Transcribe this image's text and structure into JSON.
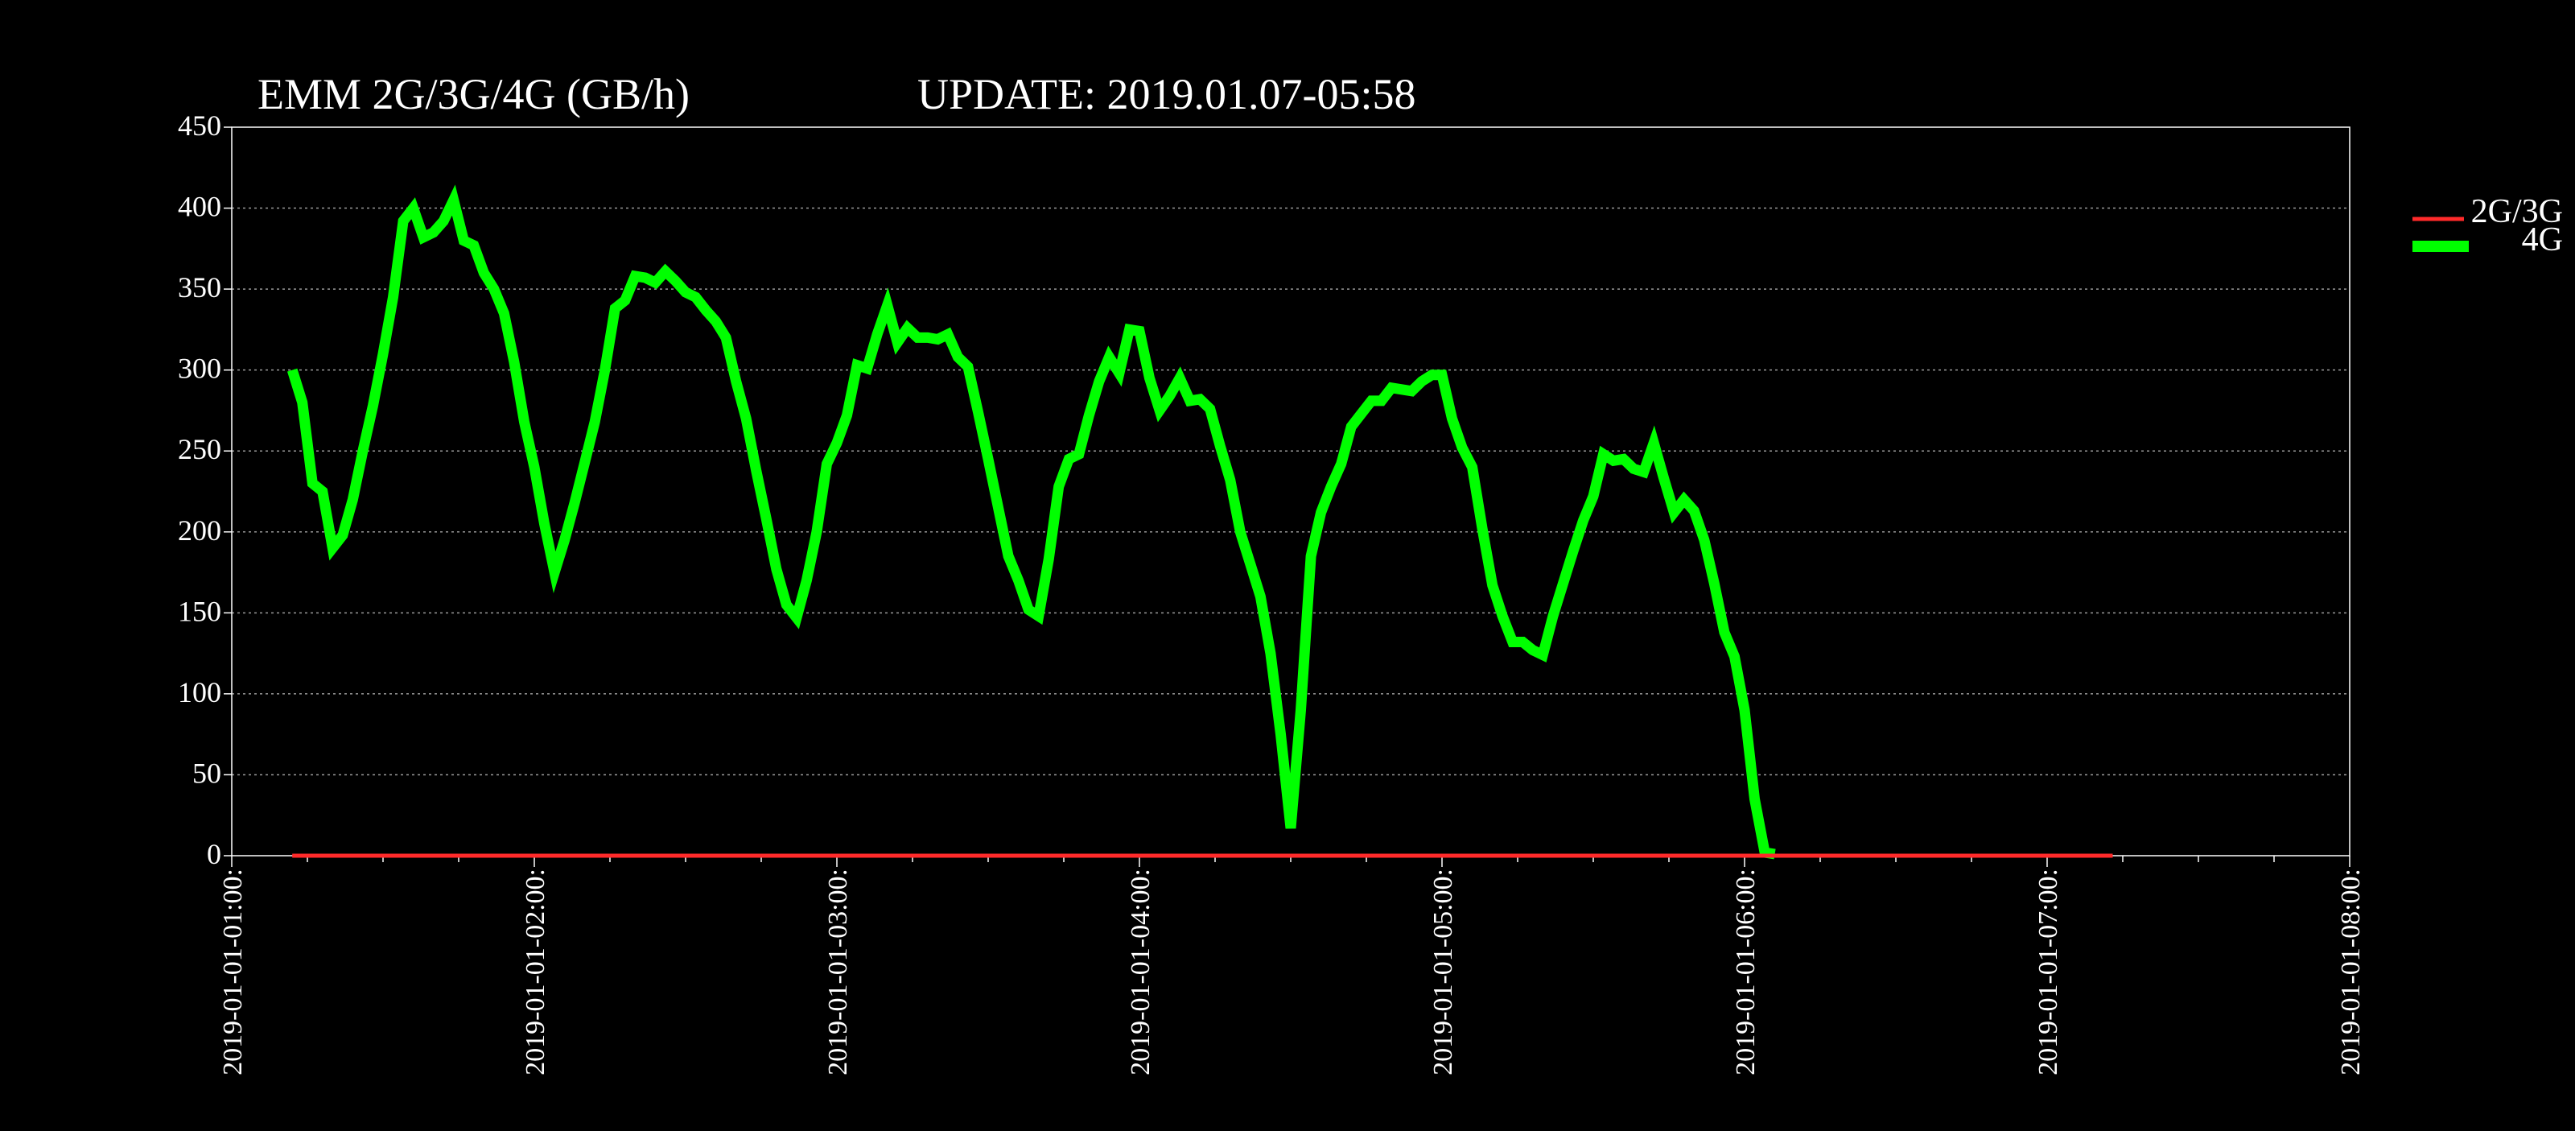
{
  "header": {
    "title": "EMM  2G/3G/4G (GB/h)",
    "update": "UPDATE: 2019.01.07-05:58"
  },
  "colors": {
    "background": "#000000",
    "axis": "#ffffff",
    "grid": "#9a9a9a",
    "series_2g3g": "#ff2a2a",
    "series_4g": "#00ff00"
  },
  "chart_data": {
    "type": "line",
    "title": "EMM  2G/3G/4G (GB/h)",
    "xlabel": "",
    "ylabel": "",
    "x_range": [
      "2019-01-01 01:00",
      "2019-01-01 08:00"
    ],
    "ylim": [
      0,
      450
    ],
    "yticks": [
      "0",
      "50",
      "100",
      "150",
      "200",
      "250",
      "300",
      "350",
      "400",
      "450"
    ],
    "xticks": [
      "2019-01-01-01:00:",
      "2019-01-01-02:00:",
      "2019-01-01-03:00:",
      "2019-01-01-04:00:",
      "2019-01-01-05:00:",
      "2019-01-01-06:00:",
      "2019-01-01-07:00:",
      "2019-01-01-08:00:"
    ],
    "grid": "horizontal dotted",
    "legend_position": "right",
    "series": [
      {
        "name": "2G/3G",
        "color": "#ff2a2a",
        "points": [
          [
            "01:12",
            0
          ],
          [
            "07:13",
            0
          ]
        ]
      },
      {
        "name": "4G",
        "color": "#00ff00",
        "points": [
          [
            "01:12",
            300
          ],
          [
            "01:14",
            280
          ],
          [
            "01:16",
            230
          ],
          [
            "01:18",
            225
          ],
          [
            "01:20",
            190
          ],
          [
            "01:22",
            198
          ],
          [
            "01:24",
            220
          ],
          [
            "01:26",
            250
          ],
          [
            "01:28",
            278
          ],
          [
            "01:30",
            310
          ],
          [
            "01:32",
            345
          ],
          [
            "01:34",
            392
          ],
          [
            "01:36",
            400
          ],
          [
            "01:38",
            382
          ],
          [
            "01:40",
            385
          ],
          [
            "01:42",
            392
          ],
          [
            "01:44",
            405
          ],
          [
            "01:46",
            380
          ],
          [
            "01:48",
            377
          ],
          [
            "01:50",
            360
          ],
          [
            "01:52",
            350
          ],
          [
            "01:54",
            335
          ],
          [
            "01:56",
            305
          ],
          [
            "01:58",
            268
          ],
          [
            "02:00",
            240
          ],
          [
            "02:02",
            205
          ],
          [
            "02:04",
            175
          ],
          [
            "02:06",
            195
          ],
          [
            "02:08",
            218
          ],
          [
            "02:10",
            243
          ],
          [
            "02:12",
            268
          ],
          [
            "02:14",
            300
          ],
          [
            "02:16",
            338
          ],
          [
            "02:18",
            343
          ],
          [
            "02:20",
            358
          ],
          [
            "02:22",
            357
          ],
          [
            "02:24",
            354
          ],
          [
            "02:26",
            361
          ],
          [
            "02:28",
            355
          ],
          [
            "02:30",
            348
          ],
          [
            "02:32",
            345
          ],
          [
            "02:34",
            337
          ],
          [
            "02:36",
            330
          ],
          [
            "02:38",
            320
          ],
          [
            "02:40",
            293
          ],
          [
            "02:42",
            270
          ],
          [
            "02:44",
            238
          ],
          [
            "02:46",
            208
          ],
          [
            "02:48",
            177
          ],
          [
            "02:50",
            155
          ],
          [
            "02:52",
            147
          ],
          [
            "02:54",
            170
          ],
          [
            "02:56",
            200
          ],
          [
            "02:58",
            242
          ],
          [
            "03:00",
            255
          ],
          [
            "03:02",
            272
          ],
          [
            "03:04",
            303
          ],
          [
            "03:06",
            301
          ],
          [
            "03:08",
            322
          ],
          [
            "03:10",
            340
          ],
          [
            "03:12",
            317
          ],
          [
            "03:14",
            326
          ],
          [
            "03:16",
            320
          ],
          [
            "03:18",
            320
          ],
          [
            "03:20",
            319
          ],
          [
            "03:22",
            322
          ],
          [
            "03:24",
            308
          ],
          [
            "03:26",
            302
          ],
          [
            "03:28",
            274
          ],
          [
            "03:30",
            245
          ],
          [
            "03:32",
            215
          ],
          [
            "03:34",
            185
          ],
          [
            "03:36",
            170
          ],
          [
            "03:38",
            152
          ],
          [
            "03:40",
            148
          ],
          [
            "03:42",
            183
          ],
          [
            "03:44",
            228
          ],
          [
            "03:46",
            245
          ],
          [
            "03:48",
            248
          ],
          [
            "03:50",
            272
          ],
          [
            "03:52",
            293
          ],
          [
            "03:54",
            308
          ],
          [
            "03:56",
            298
          ],
          [
            "03:58",
            325
          ],
          [
            "04:00",
            324
          ],
          [
            "04:02",
            295
          ],
          [
            "04:04",
            275
          ],
          [
            "04:06",
            284
          ],
          [
            "04:08",
            295
          ],
          [
            "04:10",
            281
          ],
          [
            "04:12",
            282
          ],
          [
            "04:14",
            276
          ],
          [
            "04:16",
            253
          ],
          [
            "04:18",
            232
          ],
          [
            "04:20",
            200
          ],
          [
            "04:22",
            180
          ],
          [
            "04:24",
            160
          ],
          [
            "04:26",
            125
          ],
          [
            "04:28",
            75
          ],
          [
            "04:30",
            17
          ],
          [
            "04:32",
            90
          ],
          [
            "04:34",
            185
          ],
          [
            "04:36",
            212
          ],
          [
            "04:38",
            228
          ],
          [
            "04:40",
            242
          ],
          [
            "04:42",
            265
          ],
          [
            "04:44",
            273
          ],
          [
            "04:46",
            281
          ],
          [
            "04:48",
            281
          ],
          [
            "04:50",
            289
          ],
          [
            "04:52",
            288
          ],
          [
            "04:54",
            287
          ],
          [
            "04:56",
            293
          ],
          [
            "04:58",
            297
          ],
          [
            "05:00",
            297
          ],
          [
            "05:02",
            270
          ],
          [
            "05:04",
            252
          ],
          [
            "05:06",
            240
          ],
          [
            "05:08",
            202
          ],
          [
            "05:10",
            167
          ],
          [
            "05:12",
            148
          ],
          [
            "05:14",
            132
          ],
          [
            "05:16",
            132
          ],
          [
            "05:18",
            127
          ],
          [
            "05:20",
            124
          ],
          [
            "05:22",
            148
          ],
          [
            "05:24",
            168
          ],
          [
            "05:26",
            188
          ],
          [
            "05:28",
            207
          ],
          [
            "05:30",
            222
          ],
          [
            "05:32",
            248
          ],
          [
            "05:34",
            244
          ],
          [
            "05:36",
            245
          ],
          [
            "05:38",
            239
          ],
          [
            "05:40",
            237
          ],
          [
            "05:42",
            255
          ],
          [
            "05:44",
            233
          ],
          [
            "05:46",
            212
          ],
          [
            "05:48",
            220
          ],
          [
            "05:50",
            213
          ],
          [
            "05:52",
            195
          ],
          [
            "05:54",
            168
          ],
          [
            "05:56",
            138
          ],
          [
            "05:58",
            123
          ],
          [
            "06:00",
            90
          ],
          [
            "06:02",
            35
          ],
          [
            "06:04",
            2
          ],
          [
            "06:06",
            1
          ]
        ]
      }
    ]
  },
  "legend": [
    {
      "label": "2G/3G",
      "color": "#ff2a2a"
    },
    {
      "label": "4G",
      "color": "#00ff00"
    }
  ]
}
